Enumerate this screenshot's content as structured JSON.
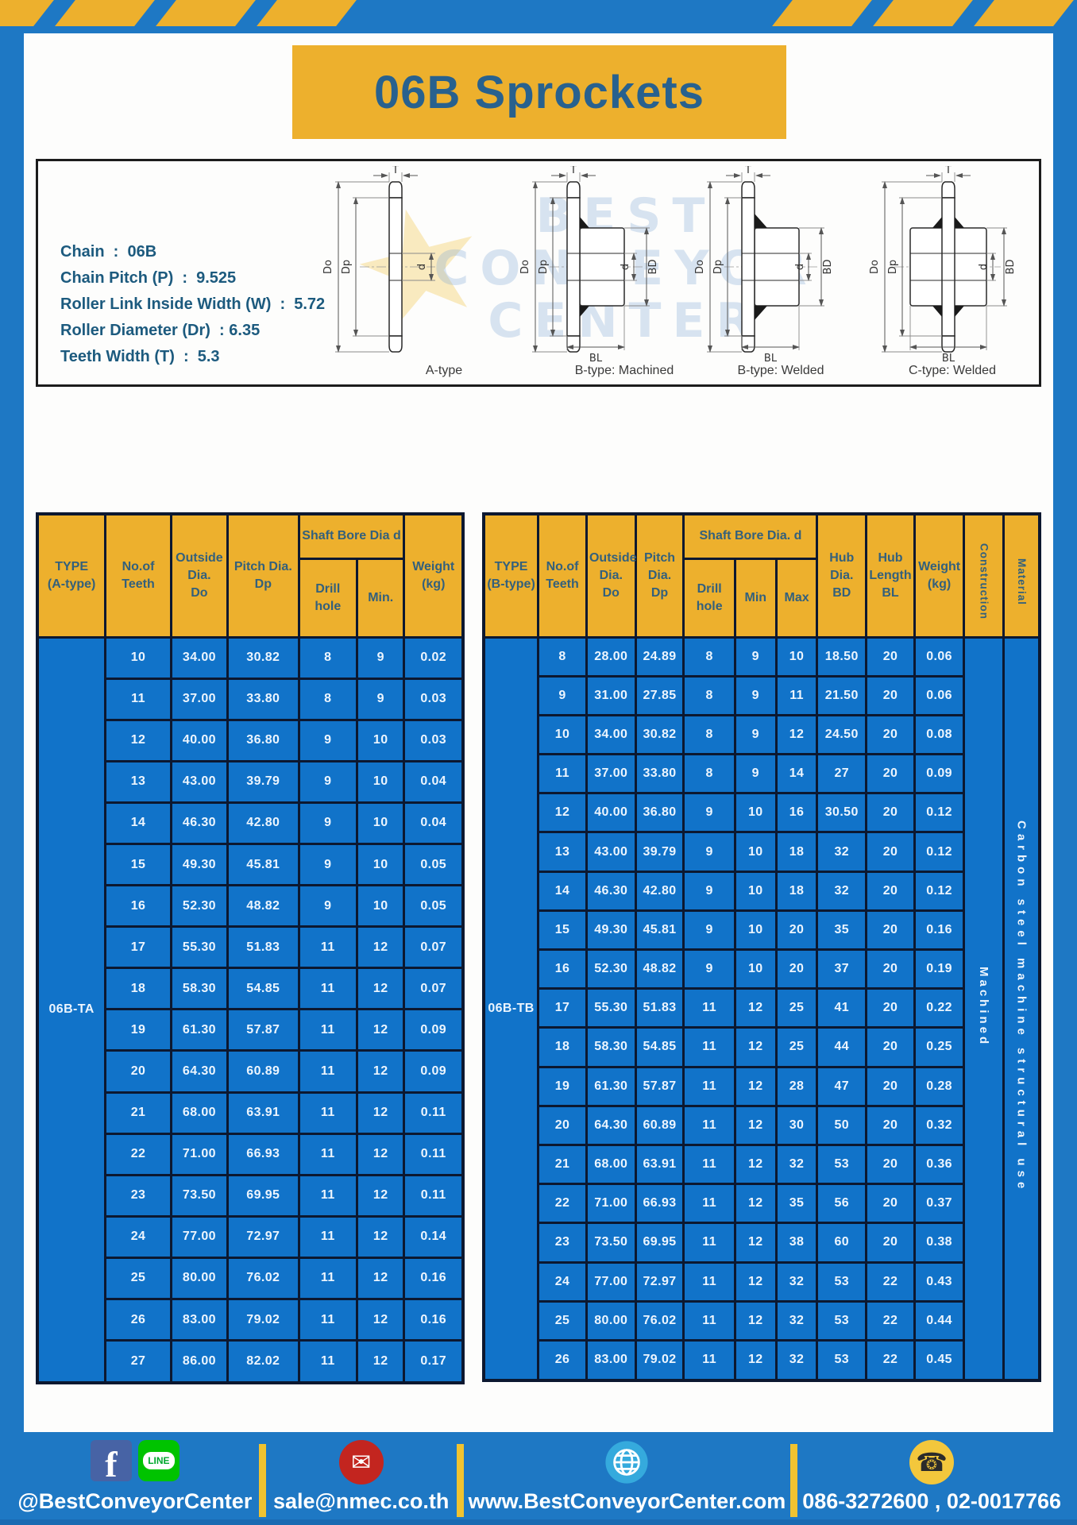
{
  "title": "06B Sprockets",
  "colors": {
    "frame_blue": "#1e78c4",
    "gold": "#edb02d",
    "cell_blue": "#1173c9",
    "border_navy": "#0c1830",
    "header_text": "#33607c",
    "title_text": "#28618e",
    "specs_text": "#1c5a7e",
    "facebook_blue": "#4763a5",
    "line_green": "#00c300",
    "envelope_red": "#c3251f",
    "globe_blue": "#35aadd",
    "phone_yellow": "#f3c73c"
  },
  "specs": {
    "lines": [
      "Chain  :  06B",
      "Chain Pitch (P)  :  9.525",
      "Roller Link Inside Width (W)  :  5.72",
      "Roller Diameter (Dr)  : 6.35",
      "Teeth Width (T)  :  5.3"
    ]
  },
  "diagrams": {
    "dims": {
      "t": "T",
      "do": "Do",
      "dp": "Dp",
      "d": "d",
      "bd": "BD",
      "bl": "BL"
    },
    "labels": [
      "A-type",
      "B-type: Machined",
      "B-type: Welded",
      "C-type: Welded"
    ],
    "watermark": [
      "BEST",
      "CONVEYOR",
      "CENTER"
    ],
    "star_glyph": "★"
  },
  "table_a": {
    "type_label": "06B-TA",
    "headers": {
      "type": "TYPE\n(A-type)",
      "teeth": "No.of\nTeeth",
      "outside": "Outside\nDia.\nDo",
      "pitch": "Pitch Dia.\nDp",
      "bore_group": "Shaft Bore Dia d",
      "drill": "Drill hole",
      "min": "Min.",
      "weight": "Weight\n(kg)"
    },
    "rows": [
      [
        "10",
        "34.00",
        "30.82",
        "8",
        "9",
        "0.02"
      ],
      [
        "11",
        "37.00",
        "33.80",
        "8",
        "9",
        "0.03"
      ],
      [
        "12",
        "40.00",
        "36.80",
        "9",
        "10",
        "0.03"
      ],
      [
        "13",
        "43.00",
        "39.79",
        "9",
        "10",
        "0.04"
      ],
      [
        "14",
        "46.30",
        "42.80",
        "9",
        "10",
        "0.04"
      ],
      [
        "15",
        "49.30",
        "45.81",
        "9",
        "10",
        "0.05"
      ],
      [
        "16",
        "52.30",
        "48.82",
        "9",
        "10",
        "0.05"
      ],
      [
        "17",
        "55.30",
        "51.83",
        "11",
        "12",
        "0.07"
      ],
      [
        "18",
        "58.30",
        "54.85",
        "11",
        "12",
        "0.07"
      ],
      [
        "19",
        "61.30",
        "57.87",
        "11",
        "12",
        "0.09"
      ],
      [
        "20",
        "64.30",
        "60.89",
        "11",
        "12",
        "0.09"
      ],
      [
        "21",
        "68.00",
        "63.91",
        "11",
        "12",
        "0.11"
      ],
      [
        "22",
        "71.00",
        "66.93",
        "11",
        "12",
        "0.11"
      ],
      [
        "23",
        "73.50",
        "69.95",
        "11",
        "12",
        "0.11"
      ],
      [
        "24",
        "77.00",
        "72.97",
        "11",
        "12",
        "0.14"
      ],
      [
        "25",
        "80.00",
        "76.02",
        "11",
        "12",
        "0.16"
      ],
      [
        "26",
        "83.00",
        "79.02",
        "11",
        "12",
        "0.16"
      ],
      [
        "27",
        "86.00",
        "82.02",
        "11",
        "12",
        "0.17"
      ]
    ]
  },
  "table_b": {
    "type_label": "06B-TB",
    "construction_value": "Machined",
    "material_value": "Carbon steel machine structural use",
    "headers": {
      "type": "TYPE\n(B-type)",
      "teeth": "No.of\nTeeth",
      "outside": "Outside\nDia.\nDo",
      "pitch": "Pitch\nDia.\nDp",
      "bore_group": "Shaft Bore Dia. d",
      "drill": "Drill hole",
      "min": "Min",
      "max": "Max",
      "hub_dia": "Hub\nDia.\nBD",
      "hub_len": "Hub\nLength\nBL",
      "weight": "Weight\n(kg)",
      "construction": "Construction",
      "material": "Material"
    },
    "rows": [
      [
        "8",
        "28.00",
        "24.89",
        "8",
        "9",
        "10",
        "18.50",
        "20",
        "0.06"
      ],
      [
        "9",
        "31.00",
        "27.85",
        "8",
        "9",
        "11",
        "21.50",
        "20",
        "0.06"
      ],
      [
        "10",
        "34.00",
        "30.82",
        "8",
        "9",
        "12",
        "24.50",
        "20",
        "0.08"
      ],
      [
        "11",
        "37.00",
        "33.80",
        "8",
        "9",
        "14",
        "27",
        "20",
        "0.09"
      ],
      [
        "12",
        "40.00",
        "36.80",
        "9",
        "10",
        "16",
        "30.50",
        "20",
        "0.12"
      ],
      [
        "13",
        "43.00",
        "39.79",
        "9",
        "10",
        "18",
        "32",
        "20",
        "0.12"
      ],
      [
        "14",
        "46.30",
        "42.80",
        "9",
        "10",
        "18",
        "32",
        "20",
        "0.12"
      ],
      [
        "15",
        "49.30",
        "45.81",
        "9",
        "10",
        "20",
        "35",
        "20",
        "0.16"
      ],
      [
        "16",
        "52.30",
        "48.82",
        "9",
        "10",
        "20",
        "37",
        "20",
        "0.19"
      ],
      [
        "17",
        "55.30",
        "51.83",
        "11",
        "12",
        "25",
        "41",
        "20",
        "0.22"
      ],
      [
        "18",
        "58.30",
        "54.85",
        "11",
        "12",
        "25",
        "44",
        "20",
        "0.25"
      ],
      [
        "19",
        "61.30",
        "57.87",
        "11",
        "12",
        "28",
        "47",
        "20",
        "0.28"
      ],
      [
        "20",
        "64.30",
        "60.89",
        "11",
        "12",
        "30",
        "50",
        "20",
        "0.32"
      ],
      [
        "21",
        "68.00",
        "63.91",
        "11",
        "12",
        "32",
        "53",
        "20",
        "0.36"
      ],
      [
        "22",
        "71.00",
        "66.93",
        "11",
        "12",
        "35",
        "56",
        "20",
        "0.37"
      ],
      [
        "23",
        "73.50",
        "69.95",
        "11",
        "12",
        "38",
        "60",
        "20",
        "0.38"
      ],
      [
        "24",
        "77.00",
        "72.97",
        "11",
        "12",
        "32",
        "53",
        "22",
        "0.43"
      ],
      [
        "25",
        "80.00",
        "76.02",
        "11",
        "12",
        "32",
        "53",
        "22",
        "0.44"
      ],
      [
        "26",
        "83.00",
        "79.02",
        "11",
        "12",
        "32",
        "53",
        "22",
        "0.45"
      ]
    ]
  },
  "footer": {
    "handle": "@BestConveyorCenter",
    "email": "sale@nmec.co.th",
    "website": "www.BestConveyorCenter.com",
    "phone": "086-3272600 , 02-0017766",
    "facebook_label": "f",
    "line_label": "LINE",
    "envelope_glyph": "✉",
    "phone_glyph": "☎"
  }
}
